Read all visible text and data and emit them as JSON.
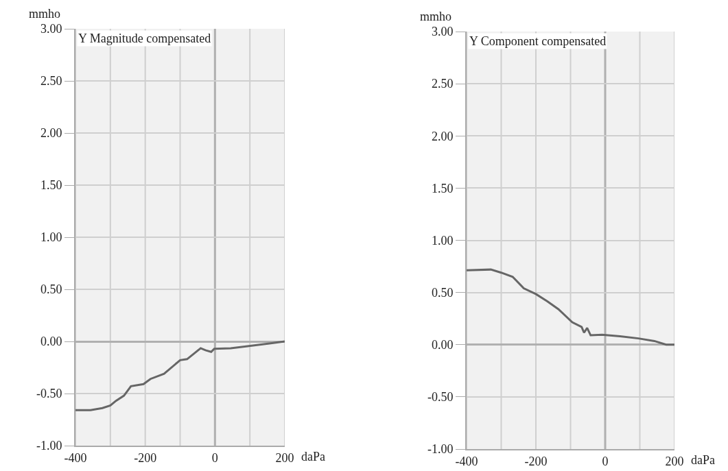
{
  "chart_data": [
    {
      "type": "line",
      "title": "Y Magnitude compensated",
      "xlabel": "daPa",
      "ylabel": "mmho",
      "x": [
        -400,
        -357,
        -323,
        -300,
        -284,
        -261,
        -241,
        -205,
        -185,
        -146,
        -100,
        -80,
        -41,
        -27,
        -11,
        -2,
        45,
        97,
        156,
        200
      ],
      "series": [
        {
          "color": "#666666",
          "values": [
            -0.66,
            -0.66,
            -0.64,
            -0.615,
            -0.57,
            -0.52,
            -0.43,
            -0.41,
            -0.36,
            -0.31,
            -0.18,
            -0.17,
            -0.065,
            -0.085,
            -0.1,
            -0.07,
            -0.065,
            -0.045,
            -0.02,
            0
          ]
        }
      ],
      "xlim": [
        -400,
        200
      ],
      "xticks": [
        -400,
        -200,
        0,
        200
      ],
      "ylim": [
        -1,
        3
      ],
      "yticks": [
        {
          "value": -1,
          "label": "-1.00"
        },
        {
          "value": -0.5,
          "label": "-0.50"
        },
        {
          "value": 0,
          "label": "0.00"
        },
        {
          "value": 0.5,
          "label": "0.50"
        },
        {
          "value": 1,
          "label": "1.00"
        },
        {
          "value": 1.5,
          "label": "1.50"
        },
        {
          "value": 2,
          "label": "2.00"
        },
        {
          "value": 2.5,
          "label": "2.50"
        },
        {
          "value": 3,
          "label": "3.00"
        }
      ],
      "grid": true,
      "marker": "none",
      "line_style": "solid"
    },
    {
      "type": "line",
      "title": "Y Component compensated",
      "xlabel": "daPa",
      "ylabel": "mmho",
      "x": [
        -400,
        -330,
        -300,
        -267,
        -235,
        -200,
        -167,
        -135,
        -95,
        -68,
        -61,
        -52,
        -42,
        -9,
        43,
        96,
        142,
        176,
        200
      ],
      "series": [
        {
          "color": "#666666",
          "values": [
            0.713,
            0.72,
            0.69,
            0.65,
            0.54,
            0.485,
            0.415,
            0.34,
            0.215,
            0.17,
            0.115,
            0.16,
            0.09,
            0.095,
            0.08,
            0.06,
            0.035,
            0,
            0
          ]
        }
      ],
      "xlim": [
        -400,
        200
      ],
      "xticks": [
        -400,
        -200,
        0,
        200
      ],
      "ylim": [
        -1,
        3
      ],
      "yticks": [
        {
          "value": -1,
          "label": "-1.00"
        },
        {
          "value": -0.5,
          "label": "-0.50"
        },
        {
          "value": 0,
          "label": "0.00"
        },
        {
          "value": 0.5,
          "label": "0.50"
        },
        {
          "value": 1,
          "label": "1.00"
        },
        {
          "value": 1.5,
          "label": "1.50"
        },
        {
          "value": 2,
          "label": "2.00"
        },
        {
          "value": 2.5,
          "label": "2.50"
        },
        {
          "value": 3,
          "label": "3.00"
        }
      ],
      "grid": true,
      "marker": "none",
      "line_style": "solid"
    }
  ]
}
